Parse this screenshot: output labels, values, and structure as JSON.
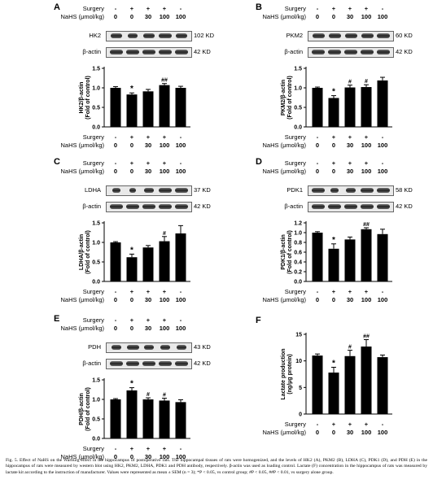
{
  "treatment": {
    "surgery_label": "Surgery",
    "nahs_label": "NaHS (μmol/kg)",
    "surgery_values": [
      "-",
      "+",
      "+",
      "+",
      "-"
    ],
    "nahs_values": [
      "0",
      "0",
      "30",
      "100",
      "100"
    ]
  },
  "panels": [
    {
      "letter": "A",
      "blots": [
        {
          "name": "HK2",
          "kd": "102 KD"
        },
        {
          "name": "β-actin",
          "kd": "42 KD"
        }
      ],
      "chart_data": {
        "type": "bar",
        "ylabel": "HK2/β-actin (Fold of control)",
        "ylim": [
          0,
          1.5
        ],
        "yticks": [
          "0.0",
          "0.5",
          "1.0",
          "1.5"
        ],
        "values": [
          1.0,
          0.83,
          0.91,
          1.07,
          1.0
        ],
        "errors": [
          0.03,
          0.04,
          0.05,
          0.04,
          0.04
        ],
        "annotations": [
          "",
          "*",
          "",
          "##",
          ""
        ]
      }
    },
    {
      "letter": "B",
      "blots": [
        {
          "name": "PKM2",
          "kd": "60 KD"
        },
        {
          "name": "β-actin",
          "kd": "42 KD"
        }
      ],
      "chart_data": {
        "type": "bar",
        "ylabel": "PKM2/β-actin (Fold of control)",
        "ylim": [
          0,
          1.5
        ],
        "yticks": [
          "0.0",
          "0.5",
          "1.0",
          "1.5"
        ],
        "values": [
          1.0,
          0.74,
          1.01,
          1.02,
          1.19
        ],
        "errors": [
          0.02,
          0.06,
          0.06,
          0.06,
          0.08
        ],
        "annotations": [
          "",
          "*",
          "#",
          "#",
          ""
        ]
      }
    },
    {
      "letter": "C",
      "blots": [
        {
          "name": "LDHA",
          "kd": "37 KD"
        },
        {
          "name": "β-actin",
          "kd": "42 KD"
        }
      ],
      "chart_data": {
        "type": "bar",
        "ylabel": "LDHA/β-actin (Fold of control)",
        "ylim": [
          0,
          1.5
        ],
        "yticks": [
          "0.0",
          "0.5",
          "1.0",
          "1.5"
        ],
        "values": [
          1.0,
          0.62,
          0.87,
          1.03,
          1.23
        ],
        "errors": [
          0.02,
          0.08,
          0.05,
          0.12,
          0.2
        ],
        "annotations": [
          "",
          "*",
          "",
          "#",
          ""
        ]
      }
    },
    {
      "letter": "D",
      "blots": [
        {
          "name": "PDK1",
          "kd": "58 KD"
        },
        {
          "name": "β-actin",
          "kd": "42 KD"
        }
      ],
      "chart_data": {
        "type": "bar",
        "ylabel": "PDK1/β-actin (Fold of control)",
        "ylim": [
          0,
          1.2
        ],
        "yticks": [
          "0.0",
          "0.2",
          "0.4",
          "0.6",
          "0.8",
          "1.0",
          "1.2"
        ],
        "values": [
          1.0,
          0.67,
          0.86,
          1.07,
          0.97
        ],
        "errors": [
          0.02,
          0.1,
          0.05,
          0.03,
          0.1
        ],
        "annotations": [
          "",
          "*",
          "",
          "##",
          ""
        ]
      }
    },
    {
      "letter": "E",
      "blots": [
        {
          "name": "PDH",
          "kd": "43 KD"
        },
        {
          "name": "β-actin",
          "kd": "42 KD"
        }
      ],
      "chart_data": {
        "type": "bar",
        "ylabel": "PDH/β-actin (Fold of control)",
        "ylim": [
          0,
          1.5
        ],
        "yticks": [
          "0.0",
          "0.5",
          "1.0",
          "1.5"
        ],
        "values": [
          1.0,
          1.23,
          1.0,
          0.97,
          0.93
        ],
        "errors": [
          0.02,
          0.07,
          0.04,
          0.06,
          0.06
        ],
        "annotations": [
          "",
          "*",
          "#",
          "#",
          ""
        ]
      }
    },
    {
      "letter": "F",
      "blots": [],
      "chart_data": {
        "type": "bar",
        "ylabel": "Lactate production (ng/μg protein)",
        "ylim": [
          0,
          15
        ],
        "yticks": [
          "0",
          "5",
          "10",
          "15"
        ],
        "values": [
          11.0,
          7.8,
          10.9,
          12.7,
          10.7
        ],
        "errors": [
          0.3,
          1.0,
          1.1,
          1.3,
          0.4
        ],
        "annotations": [
          "",
          "*",
          "#",
          "##",
          ""
        ]
      }
    }
  ],
  "caption": "Fig. 5. Effect of NaHS on the Warburg effect in the hippocampus of postoperative rats. The hippocampal tissues of rats were homogenized, and the levels of HK2 (A), PKM2 (B), LDHA (C), PDK1 (D), and PDH (E) in the hippocampus of rats were measured by western blot using HK2, PKM2, LDHA, PDK1 and PDH antibody, respectively. β-actin was used as loading control. Lactate (F) concentration in the hippocampus of rats was measured by lactate kit according to the instruction of manufacturer. Values were represented as mean ± SEM (n = 3); *P < 0.05, vs control group; #P < 0.05, ##P < 0.01, vs surgery alone group."
}
